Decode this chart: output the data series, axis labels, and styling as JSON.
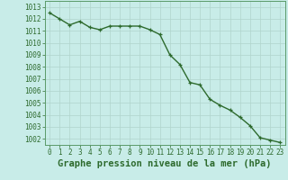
{
  "x": [
    0,
    1,
    2,
    3,
    4,
    5,
    6,
    7,
    8,
    9,
    10,
    11,
    12,
    13,
    14,
    15,
    16,
    17,
    18,
    19,
    20,
    21,
    22,
    23
  ],
  "y": [
    1012.5,
    1012.0,
    1011.5,
    1011.8,
    1011.3,
    1011.1,
    1011.4,
    1011.4,
    1011.4,
    1011.4,
    1011.1,
    1010.7,
    1009.0,
    1008.2,
    1006.7,
    1006.5,
    1005.3,
    1004.8,
    1004.4,
    1003.8,
    1003.1,
    1002.1,
    1001.9,
    1001.7
  ],
  "line_color": "#2d6a2d",
  "marker_color": "#2d6a2d",
  "bg_color": "#c8ece8",
  "grid_color": "#b0d4cc",
  "title": "Graphe pression niveau de la mer (hPa)",
  "title_color": "#2d6a2d",
  "ylim_min": 1001.5,
  "ylim_max": 1013.5,
  "yticks": [
    1002,
    1003,
    1004,
    1005,
    1006,
    1007,
    1008,
    1009,
    1010,
    1011,
    1012,
    1013
  ],
  "xticks": [
    0,
    1,
    2,
    3,
    4,
    5,
    6,
    7,
    8,
    9,
    10,
    11,
    12,
    13,
    14,
    15,
    16,
    17,
    18,
    19,
    20,
    21,
    22,
    23
  ],
  "xtick_labels": [
    "0",
    "1",
    "2",
    "3",
    "4",
    "5",
    "6",
    "7",
    "8",
    "9",
    "10",
    "11",
    "12",
    "13",
    "14",
    "15",
    "16",
    "17",
    "18",
    "19",
    "20",
    "21",
    "22",
    "23"
  ],
  "marker_size": 3.5,
  "line_width": 1.0,
  "tick_color": "#2d6a2d",
  "tick_fontsize": 5.5,
  "title_fontsize": 7.5,
  "spine_color": "#5a9a6a"
}
